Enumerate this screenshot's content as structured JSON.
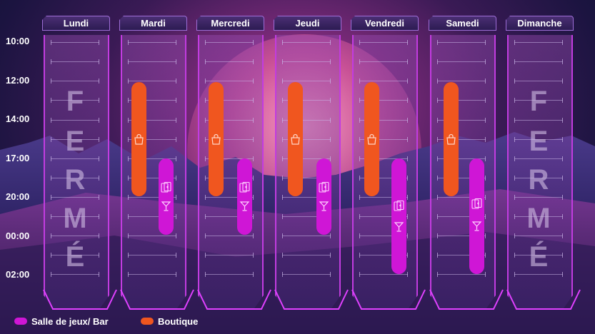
{
  "times": [
    "10:00",
    "12:00",
    "14:00",
    "17:00",
    "20:00",
    "00:00",
    "02:00"
  ],
  "days": [
    {
      "label": "Lundi",
      "closed": true,
      "closed_letters": [
        "F",
        "E",
        "R",
        "M",
        "É"
      ]
    },
    {
      "label": "Mardi",
      "closed": false
    },
    {
      "label": "Mercredi",
      "closed": false
    },
    {
      "label": "Jeudi",
      "closed": false
    },
    {
      "label": "Vendredi",
      "closed": false
    },
    {
      "label": "Samedi",
      "closed": false
    },
    {
      "label": "Dimanche",
      "closed": true,
      "closed_letters": [
        "F",
        "E",
        "R",
        "M",
        "É"
      ]
    }
  ],
  "legend": {
    "bar_label": "Salle de jeux/ Bar",
    "boutique_label": "Boutique"
  },
  "colors": {
    "boutique": "#f0561f",
    "bar": "#cf16d6",
    "column_border": "#c23ce0"
  },
  "icons": {
    "boutique": "shopping-bag-icon",
    "bar": [
      "playing-cards-icon",
      "cocktail-glass-icon"
    ]
  }
}
